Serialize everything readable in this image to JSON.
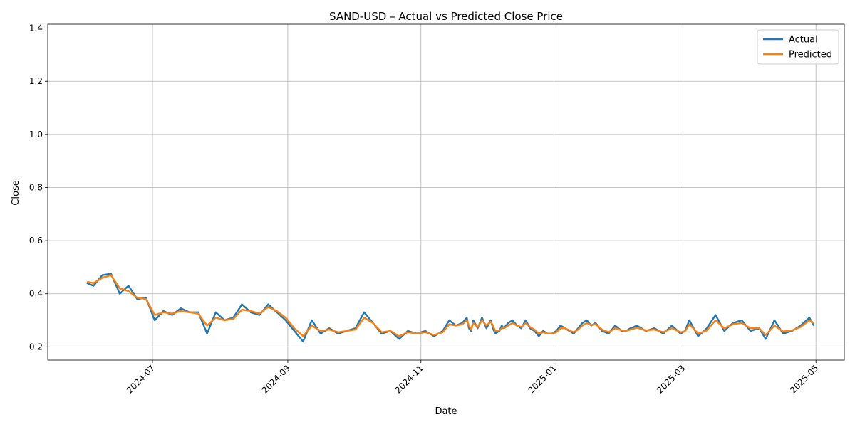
{
  "chart_data": {
    "type": "line",
    "title": "SAND-USD – Actual vs Predicted Close Price",
    "xlabel": "Date",
    "ylabel": "Close",
    "xlim": [
      "2024-05-14",
      "2025-05-14"
    ],
    "ylim": [
      0.15,
      1.415
    ],
    "x_ticks": [
      "2024-07",
      "2024-09",
      "2024-11",
      "2025-01",
      "2025-03",
      "2025-05"
    ],
    "y_ticks": [
      "0.2",
      "0.4",
      "0.6",
      "0.8",
      "1.0",
      "1.2",
      "1.4"
    ],
    "grid": true,
    "legend_position": "top-right",
    "colors": {
      "Actual": "#1f77b4",
      "Predicted": "#ff7f0e"
    },
    "x": [
      "2024-06-01",
      "2024-06-04",
      "2024-06-08",
      "2024-06-12",
      "2024-06-16",
      "2024-06-20",
      "2024-06-24",
      "2024-06-28",
      "2024-07-02",
      "2024-07-06",
      "2024-07-10",
      "2024-07-14",
      "2024-07-18",
      "2024-07-22",
      "2024-07-26",
      "2024-07-30",
      "2024-08-03",
      "2024-08-07",
      "2024-08-11",
      "2024-08-15",
      "2024-08-19",
      "2024-08-23",
      "2024-08-27",
      "2024-08-31",
      "2024-09-04",
      "2024-09-08",
      "2024-09-12",
      "2024-09-16",
      "2024-09-20",
      "2024-09-24",
      "2024-09-28",
      "2024-10-02",
      "2024-10-06",
      "2024-10-10",
      "2024-10-14",
      "2024-10-18",
      "2024-10-22",
      "2024-10-26",
      "2024-10-30",
      "2024-11-03",
      "2024-11-07",
      "2024-11-11",
      "2024-11-14",
      "2024-11-17",
      "2024-11-20",
      "2024-11-22",
      "2024-11-23",
      "2024-11-24",
      "2024-11-25",
      "2024-11-27",
      "2024-11-29",
      "2024-12-01",
      "2024-12-03",
      "2024-12-04",
      "2024-12-05",
      "2024-12-07",
      "2024-12-08",
      "2024-12-09",
      "2024-12-10",
      "2024-12-11",
      "2024-12-13",
      "2024-12-15",
      "2024-12-17",
      "2024-12-19",
      "2024-12-21",
      "2024-12-23",
      "2024-12-25",
      "2024-12-27",
      "2024-12-29",
      "2024-12-31",
      "2025-01-02",
      "2025-01-04",
      "2025-01-06",
      "2025-01-08",
      "2025-01-10",
      "2025-01-12",
      "2025-01-14",
      "2025-01-16",
      "2025-01-18",
      "2025-01-20",
      "2025-01-23",
      "2025-01-26",
      "2025-01-29",
      "2025-02-01",
      "2025-02-03",
      "2025-02-05",
      "2025-02-08",
      "2025-02-12",
      "2025-02-16",
      "2025-02-20",
      "2025-02-24",
      "2025-02-28",
      "2025-03-02",
      "2025-03-04",
      "2025-03-08",
      "2025-03-12",
      "2025-03-16",
      "2025-03-20",
      "2025-03-24",
      "2025-03-28",
      "2025-04-01",
      "2025-04-05",
      "2025-04-08",
      "2025-04-12",
      "2025-04-16",
      "2025-04-20",
      "2025-04-24",
      "2025-04-28",
      "2025-04-30"
    ],
    "series": [
      {
        "name": "Actual",
        "values": [
          0.44,
          0.43,
          0.47,
          0.475,
          0.4,
          0.43,
          0.38,
          0.385,
          0.3,
          0.335,
          0.32,
          0.345,
          0.33,
          0.33,
          0.25,
          0.33,
          0.3,
          0.31,
          0.36,
          0.33,
          0.32,
          0.36,
          0.33,
          0.3,
          0.26,
          0.22,
          0.3,
          0.25,
          0.27,
          0.25,
          0.26,
          0.27,
          0.33,
          0.29,
          0.25,
          0.26,
          0.23,
          0.26,
          0.25,
          0.26,
          0.24,
          0.26,
          0.3,
          0.28,
          0.29,
          0.31,
          0.27,
          0.26,
          0.3,
          0.27,
          0.31,
          0.27,
          0.3,
          0.27,
          0.25,
          0.26,
          0.28,
          0.27,
          0.28,
          0.29,
          0.3,
          0.28,
          0.27,
          0.3,
          0.27,
          0.26,
          0.24,
          0.26,
          0.25,
          0.25,
          0.26,
          0.28,
          0.27,
          0.26,
          0.25,
          0.27,
          0.29,
          0.3,
          0.28,
          0.29,
          0.26,
          0.25,
          0.28,
          0.26,
          0.26,
          0.27,
          0.28,
          0.26,
          0.27,
          0.25,
          0.28,
          0.25,
          0.26,
          0.3,
          0.24,
          0.27,
          0.32,
          0.26,
          0.29,
          0.3,
          0.26,
          0.27,
          0.23,
          0.3,
          0.25,
          0.26,
          0.28,
          0.31,
          0.28
        ]
      },
      {
        "name": "Predicted",
        "values": [
          0.445,
          0.44,
          0.46,
          0.47,
          0.42,
          0.41,
          0.385,
          0.38,
          0.32,
          0.33,
          0.325,
          0.335,
          0.33,
          0.325,
          0.28,
          0.31,
          0.3,
          0.305,
          0.34,
          0.335,
          0.325,
          0.35,
          0.335,
          0.31,
          0.27,
          0.24,
          0.28,
          0.26,
          0.265,
          0.255,
          0.26,
          0.265,
          0.31,
          0.29,
          0.255,
          0.26,
          0.24,
          0.255,
          0.25,
          0.255,
          0.245,
          0.255,
          0.285,
          0.28,
          0.285,
          0.3,
          0.28,
          0.265,
          0.29,
          0.275,
          0.3,
          0.28,
          0.295,
          0.28,
          0.26,
          0.262,
          0.27,
          0.27,
          0.275,
          0.28,
          0.29,
          0.28,
          0.275,
          0.29,
          0.275,
          0.265,
          0.25,
          0.255,
          0.25,
          0.25,
          0.255,
          0.27,
          0.27,
          0.262,
          0.255,
          0.265,
          0.28,
          0.29,
          0.282,
          0.285,
          0.265,
          0.255,
          0.27,
          0.262,
          0.26,
          0.265,
          0.272,
          0.262,
          0.265,
          0.255,
          0.27,
          0.255,
          0.258,
          0.285,
          0.25,
          0.262,
          0.3,
          0.27,
          0.285,
          0.29,
          0.27,
          0.27,
          0.245,
          0.28,
          0.258,
          0.262,
          0.275,
          0.3,
          0.29
        ]
      }
    ]
  }
}
